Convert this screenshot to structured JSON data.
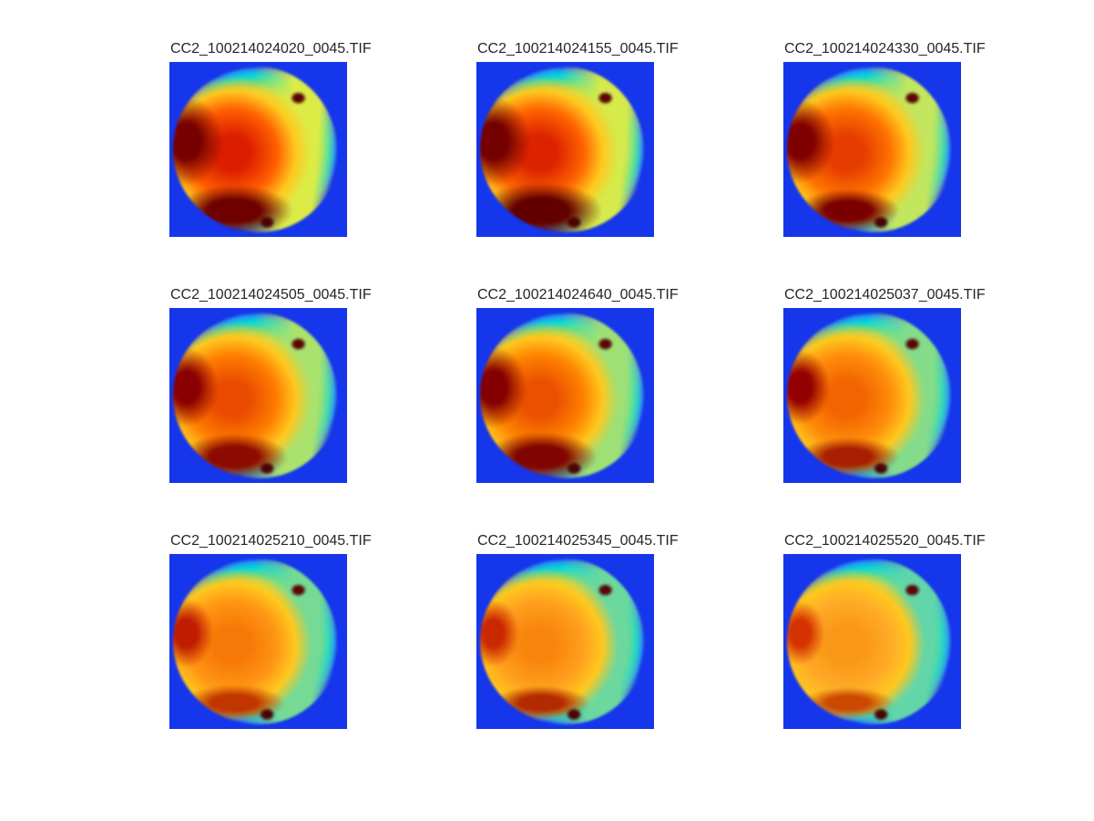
{
  "figure": {
    "background_color": "#ffffff",
    "panel_background_color": "#1536ea",
    "title_color": "#262626",
    "rim_color": "#00d8dc",
    "yellow_band_color": "#f0e43c"
  },
  "chart_data": {
    "type": "heatmap",
    "layout": "3x3 montage of false-color images",
    "colormap": "jet",
    "grid": {
      "rows": 3,
      "cols": 3
    },
    "titles": [
      "CC2_100214024020_0045.TIF",
      "CC2_100214024155_0045.TIF",
      "CC2_100214024330_0045.TIF",
      "CC2_100214024505_0045.TIF",
      "CC2_100214024640_0045.TIF",
      "CC2_100214025037_0045.TIF",
      "CC2_100214025210_0045.TIF",
      "CC2_100214025345_0045.TIF",
      "CC2_100214025520_0045.TIF"
    ],
    "relative_heat_estimate": [
      0.97,
      0.96,
      0.9,
      0.86,
      0.85,
      0.79,
      0.73,
      0.7,
      0.64
    ],
    "description": "Circular sample on uniform blue background; hot red/dark-red region on left and bottom-left cooling over the sequence, right side shifting yellow-green to green-cyan; persistent small dark blemish spots at upper-right and bottom-center of the disk; no axes, ticks or colorbar shown."
  },
  "panels": [
    {
      "title": "CC2_100214024020_0045.TIF",
      "core": "#dc1e00",
      "mid": "#ff5f00",
      "right": "#dcec46",
      "left_patch": "#780000",
      "lp_w": "30%",
      "lp_h": "36%",
      "bottom_patch": "#6e0000",
      "bp_w": "46%",
      "bp_h": "20%"
    },
    {
      "title": "CC2_100214024155_0045.TIF",
      "core": "#dc2300",
      "mid": "#ff6400",
      "right": "#d6ea4c",
      "left_patch": "#740000",
      "lp_w": "30%",
      "lp_h": "36%",
      "bottom_patch": "#620000",
      "bp_w": "48%",
      "bp_h": "22%"
    },
    {
      "title": "CC2_100214024330_0045.TIF",
      "core": "#e63c00",
      "mid": "#ff7300",
      "right": "#c2e65e",
      "left_patch": "#800000",
      "lp_w": "28%",
      "lp_h": "34%",
      "bottom_patch": "#7a0000",
      "bp_w": "40%",
      "bp_h": "17%"
    },
    {
      "title": "CC2_100214024505_0045.TIF",
      "core": "#ea4b00",
      "mid": "#ff7d00",
      "right": "#aae26e",
      "left_patch": "#8a0000",
      "lp_w": "26%",
      "lp_h": "32%",
      "bottom_patch": "#8c0a00",
      "bp_w": "42%",
      "bp_h": "18%"
    },
    {
      "title": "CC2_100214024640_0045.TIF",
      "core": "#ea5000",
      "mid": "#ff8200",
      "right": "#9ee076",
      "left_patch": "#840000",
      "lp_w": "27%",
      "lp_h": "33%",
      "bottom_patch": "#800500",
      "bp_w": "44%",
      "bp_h": "19%"
    },
    {
      "title": "CC2_100214025037_0045.TIF",
      "core": "#f26400",
      "mid": "#ff8c0a",
      "right": "#84dc8a",
      "left_patch": "#940000",
      "lp_w": "24%",
      "lp_h": "30%",
      "bottom_patch": "#a81e00",
      "bp_w": "40%",
      "bp_h": "15%"
    },
    {
      "title": "CC2_100214025210_0045.TIF",
      "core": "#f67808",
      "mid": "#ff9614",
      "right": "#76da94",
      "left_patch": "#c01c00",
      "lp_w": "22%",
      "lp_h": "28%",
      "bottom_patch": "#c13600",
      "bp_w": "40%",
      "bp_h": "14%"
    },
    {
      "title": "CC2_100214025345_0045.TIF",
      "core": "#f8860e",
      "mid": "#ffa01e",
      "right": "#6cd89e",
      "left_patch": "#ca2800",
      "lp_w": "21%",
      "lp_h": "27%",
      "bottom_patch": "#b22b00",
      "bp_w": "38%",
      "bp_h": "13%"
    },
    {
      "title": "CC2_100214025520_0045.TIF",
      "core": "#fa9618",
      "mid": "#ffaa28",
      "right": "#62d6a8",
      "left_patch": "#d43200",
      "lp_w": "20%",
      "lp_h": "26%",
      "bottom_patch": "#cb4800",
      "bp_w": "36%",
      "bp_h": "12%"
    }
  ]
}
